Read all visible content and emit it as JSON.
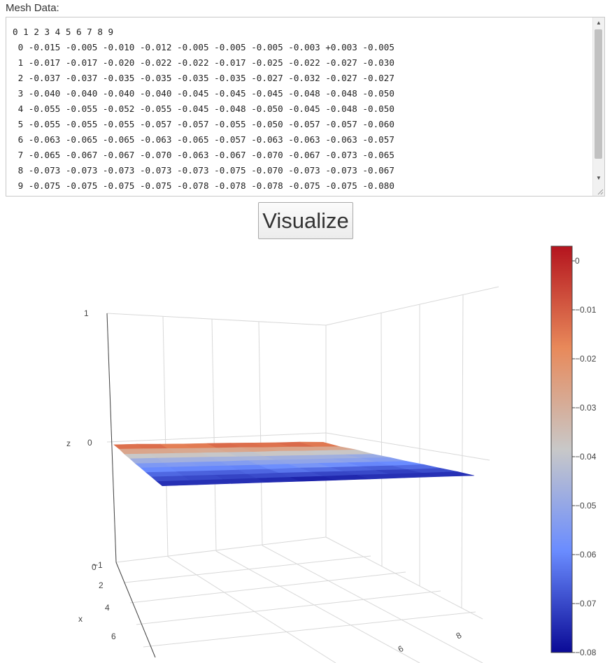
{
  "mesh_label": "Mesh Data:",
  "mesh_header": "0 1 2 3 4 5 6 7 8 9",
  "mesh_rows": [
    " 0 -0.015 -0.005 -0.010 -0.012 -0.005 -0.005 -0.005 -0.003 +0.003 -0.005",
    " 1 -0.017 -0.017 -0.020 -0.022 -0.022 -0.017 -0.025 -0.022 -0.027 -0.030",
    " 2 -0.037 -0.037 -0.035 -0.035 -0.035 -0.035 -0.027 -0.032 -0.027 -0.027",
    " 3 -0.040 -0.040 -0.040 -0.040 -0.045 -0.045 -0.045 -0.048 -0.048 -0.050",
    " 4 -0.055 -0.055 -0.052 -0.055 -0.045 -0.048 -0.050 -0.045 -0.048 -0.050",
    " 5 -0.055 -0.055 -0.055 -0.057 -0.057 -0.055 -0.050 -0.057 -0.057 -0.060",
    " 6 -0.063 -0.065 -0.065 -0.063 -0.065 -0.057 -0.063 -0.063 -0.063 -0.057",
    " 7 -0.065 -0.067 -0.067 -0.070 -0.063 -0.067 -0.070 -0.067 -0.073 -0.065",
    " 8 -0.073 -0.073 -0.073 -0.073 -0.073 -0.075 -0.070 -0.073 -0.073 -0.067",
    " 9 -0.075 -0.075 -0.075 -0.075 -0.078 -0.078 -0.078 -0.075 -0.075 -0.080"
  ],
  "visualize_label": "Visualize",
  "chart_data": {
    "type": "surface",
    "z": [
      [
        -0.015,
        -0.005,
        -0.01,
        -0.012,
        -0.005,
        -0.005,
        -0.005,
        -0.003,
        0.003,
        -0.005
      ],
      [
        -0.017,
        -0.017,
        -0.02,
        -0.022,
        -0.022,
        -0.017,
        -0.025,
        -0.022,
        -0.027,
        -0.03
      ],
      [
        -0.037,
        -0.037,
        -0.035,
        -0.035,
        -0.035,
        -0.035,
        -0.027,
        -0.032,
        -0.027,
        -0.027
      ],
      [
        -0.04,
        -0.04,
        -0.04,
        -0.04,
        -0.045,
        -0.045,
        -0.045,
        -0.048,
        -0.048,
        -0.05
      ],
      [
        -0.055,
        -0.055,
        -0.052,
        -0.055,
        -0.045,
        -0.048,
        -0.05,
        -0.045,
        -0.048,
        -0.05
      ],
      [
        -0.055,
        -0.055,
        -0.055,
        -0.057,
        -0.057,
        -0.055,
        -0.05,
        -0.057,
        -0.057,
        -0.06
      ],
      [
        -0.063,
        -0.065,
        -0.065,
        -0.063,
        -0.065,
        -0.057,
        -0.063,
        -0.063,
        -0.063,
        -0.057
      ],
      [
        -0.065,
        -0.067,
        -0.067,
        -0.07,
        -0.063,
        -0.067,
        -0.07,
        -0.067,
        -0.073,
        -0.065
      ],
      [
        -0.073,
        -0.073,
        -0.073,
        -0.073,
        -0.073,
        -0.075,
        -0.07,
        -0.073,
        -0.073,
        -0.067
      ],
      [
        -0.075,
        -0.075,
        -0.075,
        -0.075,
        -0.078,
        -0.078,
        -0.078,
        -0.075,
        -0.075,
        -0.08
      ]
    ],
    "colorscale": [
      "#0a0a96",
      "#6a8cff",
      "#c8c8c8",
      "#e8895a",
      "#b4141e"
    ],
    "colorbar_ticks": [
      "0",
      "−0.01",
      "−0.02",
      "−0.03",
      "−0.04",
      "−0.05",
      "−0.06",
      "−0.07",
      "−0.08"
    ],
    "zaxis": {
      "label": "z",
      "ticks": [
        "1",
        "0",
        "−1"
      ]
    },
    "xaxis": {
      "label": "x",
      "ticks": [
        "0",
        "2",
        "4",
        "6"
      ]
    },
    "yaxis": {
      "ticks": [
        "6",
        "8"
      ]
    }
  }
}
